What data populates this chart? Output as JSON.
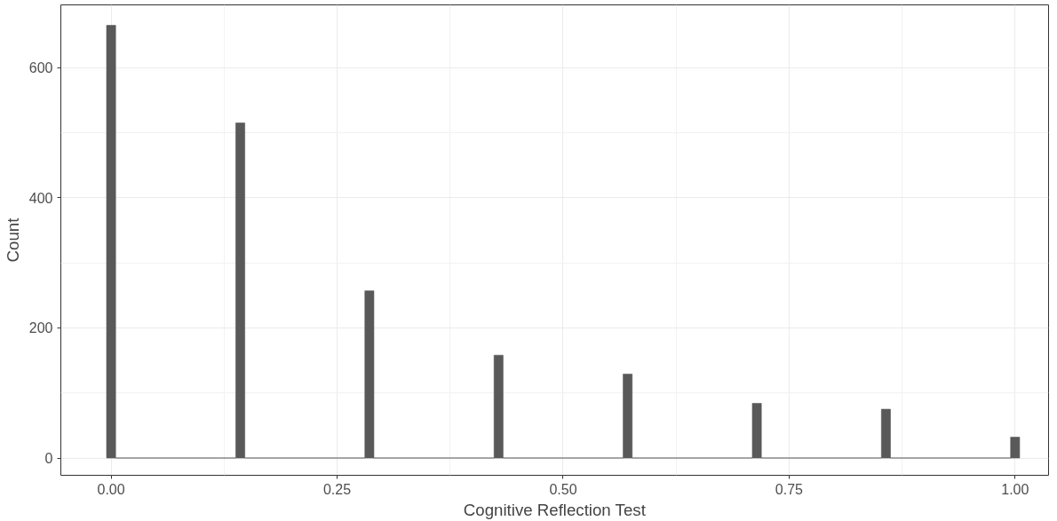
{
  "chart_data": {
    "type": "histogram",
    "xlabel": "Cognitive Reflection Test",
    "ylabel": "Count",
    "bins": [
      -0.005,
      0.005,
      0.1379,
      0.1479,
      0.2807,
      0.2907,
      0.4236,
      0.4336,
      0.5664,
      0.5764,
      0.7093,
      0.7193,
      0.8521,
      0.8621,
      0.995,
      1.005
    ],
    "values": [
      665,
      0,
      515,
      0,
      257,
      0,
      158,
      0,
      129,
      0,
      84,
      0,
      75,
      0,
      32
    ],
    "color": "#595959",
    "xlim": [
      -0.0556,
      1.037
    ],
    "xticks": [
      {
        "value": 0,
        "label": "0.00"
      },
      {
        "value": 0.25,
        "label": "0.25"
      },
      {
        "value": 0.5,
        "label": "0.50"
      },
      {
        "value": 0.75,
        "label": "0.75"
      },
      {
        "value": 1,
        "label": "1.00"
      }
    ],
    "ylim": [
      -26.6,
      696.5
    ],
    "yticks": [
      0,
      200,
      400,
      600
    ],
    "grid": true
  }
}
